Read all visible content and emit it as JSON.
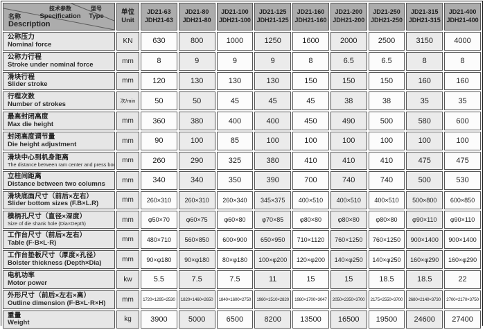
{
  "colors": {
    "header_bg": "#acacac",
    "label_bg": "#e6e6e6",
    "stripe_bg": "#ebebeb",
    "white_bg": "#fcfcfc",
    "border": "#565656"
  },
  "header": {
    "corner": {
      "spec_zh": "技术参数",
      "spec_en": "Specification",
      "type_zh": "型号",
      "type_en": "Type",
      "name_zh": "名称",
      "name_en": "Description"
    },
    "unit": {
      "zh": "单位",
      "en": "Unit"
    },
    "models": [
      {
        "line1": "JD21-63",
        "line2": "JDH21-63"
      },
      {
        "line1": "JD21-80",
        "line2": "JDH21-80"
      },
      {
        "line1": "JD21-100",
        "line2": "JDH21-100"
      },
      {
        "line1": "JD21-125",
        "line2": "JDH21-125"
      },
      {
        "line1": "JD21-160",
        "line2": "JDH21-160"
      },
      {
        "line1": "JD21-200",
        "line2": "JDH21-200"
      },
      {
        "line1": "JD21-250",
        "line2": "JDH21-250"
      },
      {
        "line1": "JD21-315",
        "line2": "JDH21-315"
      },
      {
        "line1": "JD21-400",
        "line2": "JDH21-400"
      }
    ]
  },
  "rows": [
    {
      "zh": "公称压力",
      "en": "Nominal force",
      "unit": "KN",
      "values": [
        "630",
        "800",
        "1000",
        "1250",
        "1600",
        "2000",
        "2500",
        "3150",
        "4000"
      ]
    },
    {
      "zh": "公称力行程",
      "en": "Stroke under nominal force",
      "unit": "mm",
      "values": [
        "8",
        "9",
        "9",
        "9",
        "8",
        "6.5",
        "6.5",
        "8",
        "8"
      ]
    },
    {
      "zh": "滑块行程",
      "en": "Slider stroke",
      "unit": "mm",
      "values": [
        "120",
        "130",
        "130",
        "130",
        "150",
        "150",
        "150",
        "160",
        "160"
      ]
    },
    {
      "zh": "行程次数",
      "en": "Number of strokes",
      "unit": "次/min",
      "values": [
        "50",
        "50",
        "45",
        "45",
        "45",
        "38",
        "38",
        "35",
        "35"
      ]
    },
    {
      "zh": "最高封闭高度",
      "en": "Max die height",
      "unit": "mm",
      "values": [
        "360",
        "380",
        "400",
        "400",
        "450",
        "490",
        "500",
        "580",
        "600"
      ]
    },
    {
      "zh": "封闭高度调节量",
      "en": "Die height adjustment",
      "unit": "mm",
      "values": [
        "90",
        "100",
        "85",
        "100",
        "100",
        "100",
        "100",
        "100",
        "100"
      ]
    },
    {
      "zh": "滑块中心到机身距离",
      "en": "The distance between ram center and press body",
      "unit": "mm",
      "values": [
        "260",
        "290",
        "325",
        "380",
        "410",
        "410",
        "410",
        "475",
        "475"
      ]
    },
    {
      "zh": "立柱间距离",
      "en": "Distance between two columns",
      "unit": "mm",
      "values": [
        "340",
        "340",
        "350",
        "390",
        "700",
        "740",
        "740",
        "500",
        "530"
      ]
    },
    {
      "zh": "滑块底面尺寸（前后×左右）",
      "en": "Slider bottom sizes (F.B×L.R)",
      "unit": "mm",
      "values": [
        "260×310",
        "260×310",
        "260×340",
        "345×375",
        "400×510",
        "400×510",
        "400×510",
        "500×800",
        "600×850"
      ]
    },
    {
      "zh": "模柄孔尺寸（直径×深度）",
      "en": "Size of die shank hole (Dia×Depth)",
      "unit": "mm",
      "values": [
        "φ50×70",
        "φ60×75",
        "φ60×80",
        "φ70×85",
        "φ80×80",
        "φ80×80",
        "φ80×80",
        "φ90×110",
        "φ90×110"
      ]
    },
    {
      "zh": "工作台尺寸（前后×左右）",
      "en": "Table (F·B×L·R)",
      "unit": "mm",
      "values": [
        "480×710",
        "560×850",
        "600×900",
        "650×950",
        "710×1120",
        "760×1250",
        "760×1250",
        "900×1400",
        "900×1400"
      ]
    },
    {
      "zh": "工作台垫板尺寸（厚度×孔径）",
      "en": "Bolster thickness (Depth×Dia)",
      "unit": "mm",
      "values": [
        "90×φ180",
        "90×φ180",
        "80×φ180",
        "100×φ200",
        "120×φ200",
        "140×φ250",
        "140×φ250",
        "160×φ290",
        "160×φ290"
      ]
    },
    {
      "zh": "电机功率",
      "en": "Motor power",
      "unit": "kw",
      "values": [
        "5.5",
        "7.5",
        "7.5",
        "11",
        "15",
        "15",
        "18.5",
        "18.5",
        "22"
      ]
    },
    {
      "zh": "外形尺寸（前后×左右×高）",
      "en": "Outline dimension (F·B×L·R×H)",
      "unit": "mm",
      "values": [
        "1720×1295×2530",
        "1820×1460×2650",
        "1840×1600×2750",
        "1980×1510×2820",
        "1980×1700×3047",
        "2050×2350×3700",
        "2175×2550×3700",
        "2680×2140×3730",
        "2700×2170×3750"
      ]
    },
    {
      "zh": "重量",
      "en": "Weight",
      "unit": "kg",
      "values": [
        "3900",
        "5000",
        "6500",
        "8200",
        "13500",
        "16500",
        "19500",
        "24600",
        "27400"
      ]
    }
  ]
}
